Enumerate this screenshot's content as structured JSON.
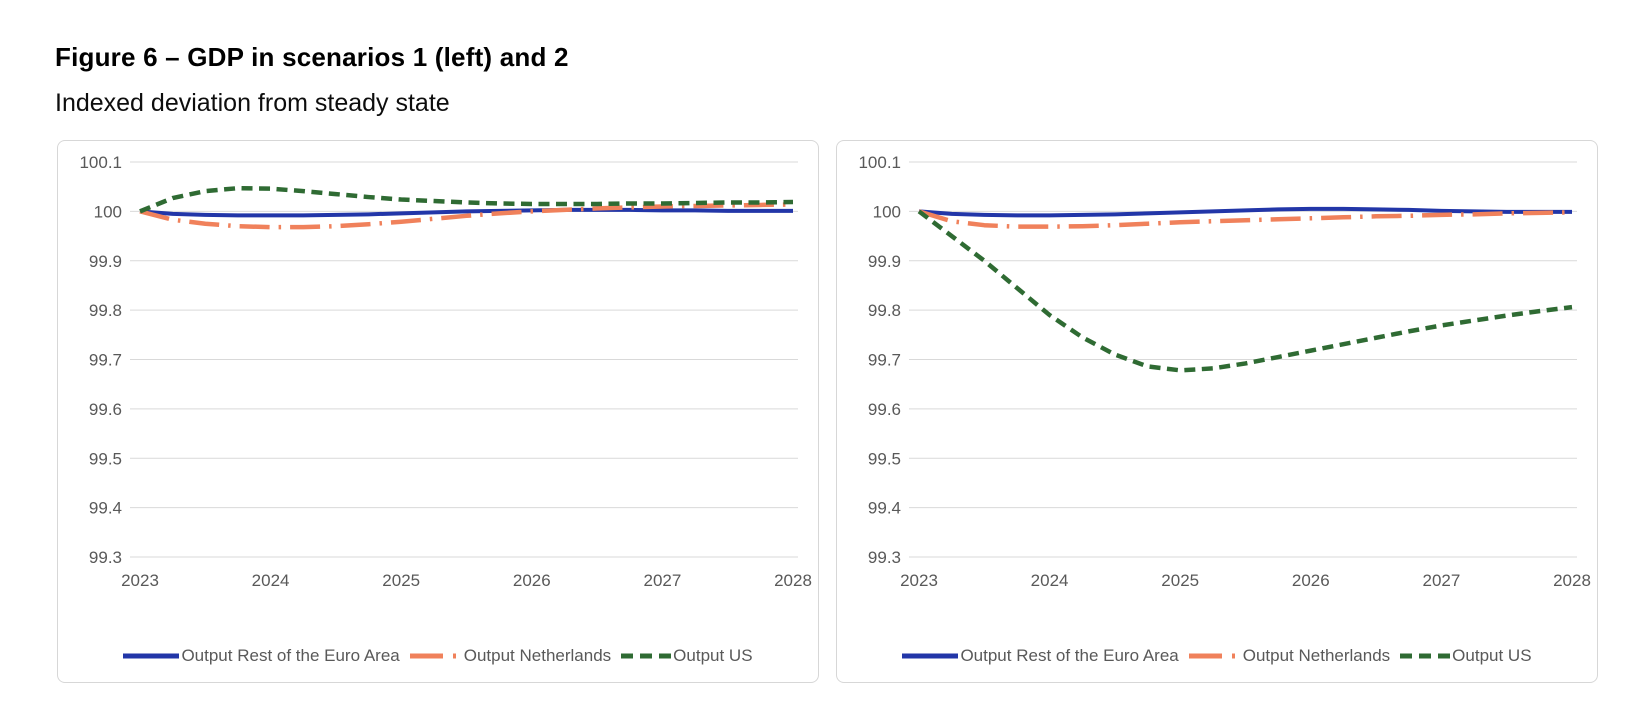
{
  "figure": {
    "title": "Figure 6 – GDP in scenarios 1 (left) and 2",
    "subtitle": "Indexed deviation from steady state"
  },
  "colors": {
    "euro_area": "#2236a8",
    "netherlands": "#f0815b",
    "us": "#2f6b33",
    "gridline": "#d9d9d9",
    "axis_text": "#595959",
    "legend_text": "#595959",
    "panel_border": "#d7d7d7"
  },
  "chart_data": [
    {
      "type": "line",
      "scenario": "Scenario 1 (left)",
      "xlim": [
        2023,
        2028
      ],
      "ylim": [
        99.3,
        100.1
      ],
      "grid": true,
      "legend_position": "bottom",
      "x_tick_labels": [
        "2023",
        "2024",
        "2025",
        "2026",
        "2027",
        "2028"
      ],
      "y_tick_labels": [
        "100.1",
        "100",
        "99.9",
        "99.8",
        "99.7",
        "99.6",
        "99.5",
        "99.4",
        "99.3"
      ],
      "x": [
        2023,
        2023.25,
        2023.5,
        2023.75,
        2024,
        2024.25,
        2024.5,
        2024.75,
        2025,
        2025.25,
        2025.5,
        2025.75,
        2026,
        2026.25,
        2026.5,
        2026.75,
        2027,
        2027.25,
        2027.5,
        2027.75,
        2028
      ],
      "series": [
        {
          "name": "Output Rest of the Euro Area",
          "color_key": "euro_area",
          "line_style": "solid",
          "values": [
            100.0,
            99.995,
            99.993,
            99.992,
            99.992,
            99.992,
            99.993,
            99.994,
            99.996,
            99.998,
            100.0,
            100.001,
            100.002,
            100.003,
            100.003,
            100.003,
            100.002,
            100.002,
            100.001,
            100.001,
            100.001
          ]
        },
        {
          "name": "Output Netherlands",
          "color_key": "netherlands",
          "line_style": "long-dash-dot",
          "values": [
            100.0,
            99.983,
            99.975,
            99.97,
            99.968,
            99.968,
            99.97,
            99.974,
            99.979,
            99.985,
            99.991,
            99.996,
            100.0,
            100.003,
            100.006,
            100.008,
            100.01,
            100.011,
            100.012,
            100.013,
            100.014
          ]
        },
        {
          "name": "Output US",
          "color_key": "us",
          "line_style": "dash",
          "values": [
            100.0,
            100.027,
            100.041,
            100.047,
            100.046,
            100.041,
            100.035,
            100.029,
            100.024,
            100.021,
            100.018,
            100.016,
            100.015,
            100.015,
            100.015,
            100.016,
            100.016,
            100.017,
            100.018,
            100.018,
            100.019
          ]
        }
      ]
    },
    {
      "type": "line",
      "scenario": "Scenario 2 (right)",
      "xlim": [
        2023,
        2028
      ],
      "ylim": [
        99.3,
        100.1
      ],
      "grid": true,
      "legend_position": "bottom",
      "x_tick_labels": [
        "2023",
        "2024",
        "2025",
        "2026",
        "2027",
        "2028"
      ],
      "y_tick_labels": [
        "100.1",
        "100",
        "99.9",
        "99.8",
        "99.7",
        "99.6",
        "99.5",
        "99.4",
        "99.3"
      ],
      "x": [
        2023,
        2023.25,
        2023.5,
        2023.75,
        2024,
        2024.25,
        2024.5,
        2024.75,
        2025,
        2025.25,
        2025.5,
        2025.75,
        2026,
        2026.25,
        2026.5,
        2026.75,
        2027,
        2027.25,
        2027.5,
        2027.75,
        2028
      ],
      "series": [
        {
          "name": "Output Rest of the Euro Area",
          "color_key": "euro_area",
          "line_style": "solid",
          "values": [
            100.0,
            99.995,
            99.993,
            99.992,
            99.992,
            99.993,
            99.994,
            99.996,
            99.998,
            100.0,
            100.002,
            100.004,
            100.005,
            100.005,
            100.004,
            100.003,
            100.001,
            100.0,
            99.999,
            99.999,
            99.999
          ]
        },
        {
          "name": "Output Netherlands",
          "color_key": "netherlands",
          "line_style": "long-dash-dot",
          "values": [
            100.0,
            99.98,
            99.972,
            99.969,
            99.969,
            99.97,
            99.972,
            99.975,
            99.978,
            99.98,
            99.982,
            99.984,
            99.986,
            99.988,
            99.99,
            99.991,
            99.993,
            99.994,
            99.996,
            99.997,
            99.998
          ]
        },
        {
          "name": "Output US",
          "color_key": "us",
          "line_style": "dash",
          "values": [
            100.0,
            99.95,
            99.9,
            99.845,
            99.79,
            99.745,
            99.71,
            99.686,
            99.678,
            99.682,
            99.692,
            99.705,
            99.718,
            99.731,
            99.744,
            99.757,
            99.769,
            99.779,
            99.789,
            99.798,
            99.806
          ]
        }
      ]
    }
  ]
}
